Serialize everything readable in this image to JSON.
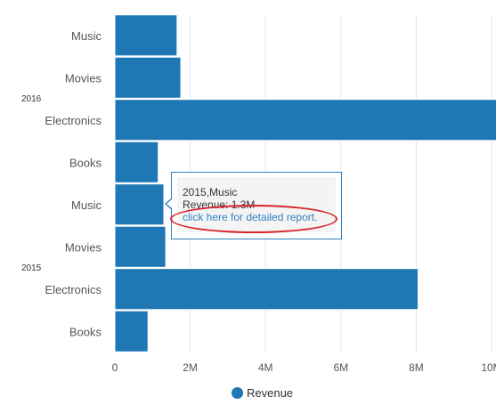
{
  "chart_data": {
    "type": "bar",
    "orientation": "horizontal",
    "groups": [
      {
        "name": "2016",
        "categories": [
          "Music",
          "Movies",
          "Electronics",
          "Books"
        ],
        "values": [
          1.65,
          1.75,
          10.2,
          1.15
        ]
      },
      {
        "name": "2015",
        "categories": [
          "Music",
          "Movies",
          "Electronics",
          "Books"
        ],
        "values": [
          1.3,
          1.35,
          8.05,
          0.88
        ]
      }
    ],
    "series": [
      {
        "name": "Revenue",
        "color": "#1f77b4"
      }
    ],
    "xlim": [
      0,
      10
    ],
    "x_ticks": [
      "0",
      "2M",
      "4M",
      "6M",
      "8M",
      "10M"
    ],
    "grid": true,
    "legend_position": "bottom"
  },
  "legend": {
    "label": "Revenue",
    "color": "#1f77b4"
  },
  "tooltip": {
    "title": "2015,Music",
    "value": "Revenue: 1.3M",
    "link_text": "click here for detailed report."
  }
}
